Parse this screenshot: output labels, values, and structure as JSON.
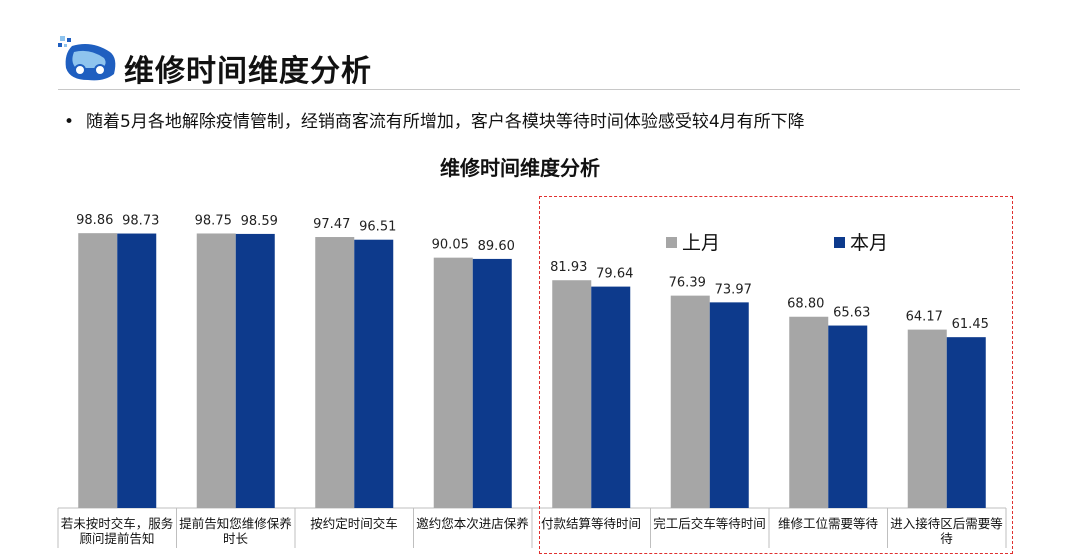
{
  "header": {
    "title": "维修时间维度分析",
    "bullet": "随着5月各地解除疫情管制，经销商客流有所增加，客户各模块等待时间体验感受较4月有所下降",
    "bullet_marker": "•"
  },
  "colors": {
    "last_month": "#a6a6a6",
    "this_month": "#0d3a8c",
    "highlight_border": "#e03030",
    "logo_blue": "#1f5fc0",
    "logo_light": "#8fc4ee"
  },
  "chart_data": {
    "type": "bar",
    "title": "维修时间维度分析",
    "categories": [
      "若未按时交车，服务顾问提前告知",
      "提前告知您维修保养时长",
      "按约定时间交车",
      "邀约您本次进店保养",
      "付款结算等待时间",
      "完工后交车等待时间",
      "维修工位需要等待",
      "进入接待区后需要等待"
    ],
    "series": [
      {
        "name": "上月",
        "values": [
          98.86,
          98.75,
          97.47,
          90.05,
          81.93,
          76.39,
          68.8,
          64.17
        ]
      },
      {
        "name": "本月",
        "values": [
          98.73,
          98.59,
          96.51,
          89.6,
          79.64,
          73.97,
          65.63,
          61.45
        ]
      }
    ],
    "value_labels": [
      [
        "98.86",
        "98.75",
        "97.47",
        "90.05",
        "81.93",
        "76.39",
        "68.80",
        "64.17"
      ],
      [
        "98.73",
        "98.59",
        "96.51",
        "89.60",
        "79.64",
        "73.97",
        "65.63",
        "61.45"
      ]
    ],
    "ylim": [
      0,
      100
    ],
    "grid": false,
    "legend": "top-right"
  }
}
